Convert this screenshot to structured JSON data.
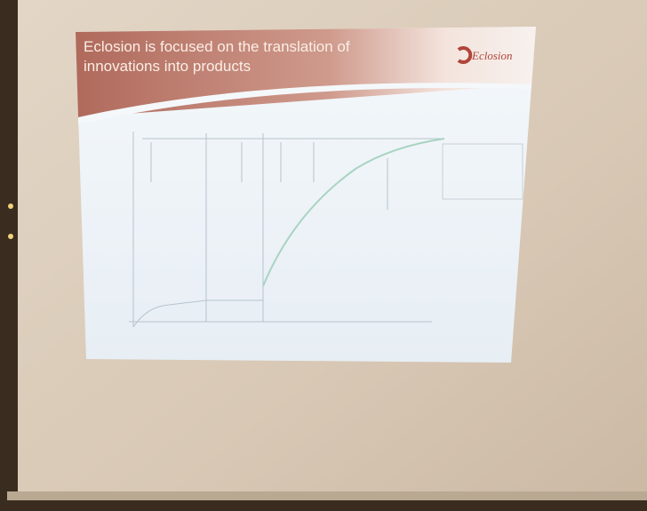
{
  "slide": {
    "title_lines": [
      "Eclosion is focused on the translation of",
      "innovations into products"
    ],
    "logo": "Eclosion"
  }
}
